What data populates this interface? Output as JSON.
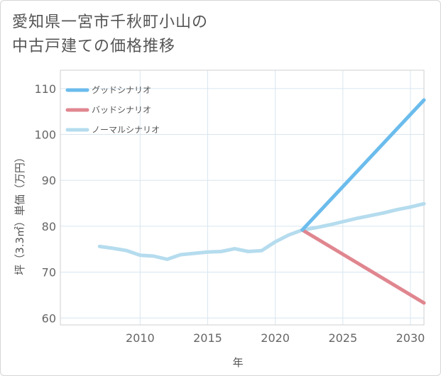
{
  "title": {
    "line1": "愛知県一宮市千秋町小山の",
    "line2": "中古戸建ての価格推移"
  },
  "chart_data": {
    "type": "line",
    "xlabel": "年",
    "ylabel": "坪（3.3㎡）単価（万円）",
    "xlim": [
      2004.1,
      2031
    ],
    "ylim": [
      58.5,
      114
    ],
    "xticks": [
      2010,
      2015,
      2020,
      2025,
      2030
    ],
    "yticks": [
      60,
      70,
      80,
      90,
      100,
      110
    ],
    "grid": true,
    "legend_position": "top-left",
    "series": [
      {
        "name": "グッドシナリオ",
        "color": "#6bbcec",
        "x": [
          2022,
          2031
        ],
        "y": [
          79.2,
          107.5
        ]
      },
      {
        "name": "バッドシナリオ",
        "color": "#e0868f",
        "x": [
          2022,
          2031
        ],
        "y": [
          79.2,
          63.3
        ]
      },
      {
        "name": "ノーマルシナリオ",
        "color": "#b5dcee",
        "x": [
          2007,
          2008,
          2009,
          2010,
          2011,
          2012,
          2013,
          2014,
          2015,
          2016,
          2017,
          2018,
          2019,
          2020,
          2021,
          2022,
          2023,
          2024,
          2025,
          2026,
          2027,
          2028,
          2029,
          2030,
          2031
        ],
        "y": [
          75.6,
          75.2,
          74.7,
          73.7,
          73.5,
          72.8,
          73.8,
          74.1,
          74.4,
          74.5,
          75.1,
          74.5,
          74.7,
          76.6,
          78.1,
          79.2,
          79.7,
          80.3,
          81.0,
          81.7,
          82.3,
          82.9,
          83.6,
          84.2,
          84.9
        ]
      }
    ]
  }
}
